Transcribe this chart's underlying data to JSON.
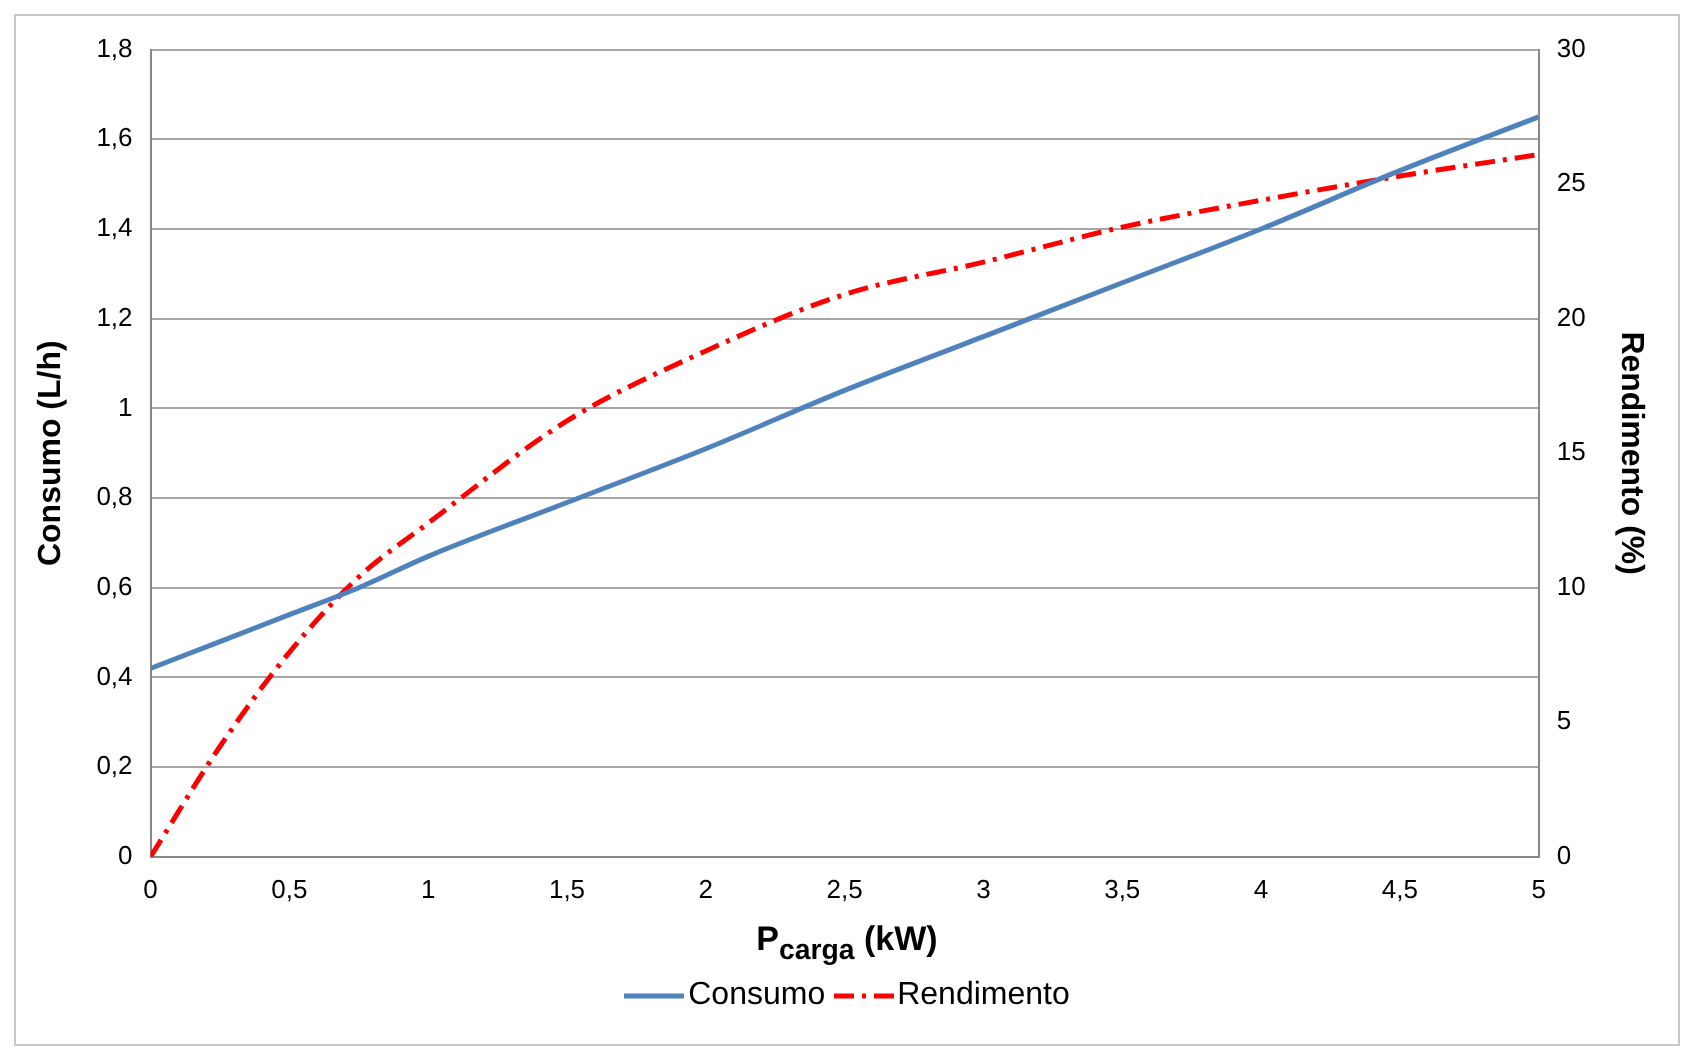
{
  "chart_data": {
    "type": "line",
    "xlabel": "P$_{carga}$ (kW)",
    "ylabel": "Consumo (L/h)",
    "y2label": "Rendimento (%)",
    "x": [
      0,
      0.25,
      0.5,
      0.75,
      1,
      1.5,
      2,
      2.5,
      3,
      3.5,
      4,
      4.5,
      5
    ],
    "series": [
      {
        "name": "Consumo",
        "color": "#4f81bd",
        "line_style": "solid",
        "values": [
          0.42,
          0.48,
          0.54,
          0.6,
          0.67,
          0.79,
          0.91,
          1.04,
          1.16,
          1.28,
          1.4,
          1.53,
          1.65
        ]
      },
      {
        "name": "Rendimento",
        "color": "#ff0000",
        "line_style": "dashed",
        "axis": "y2",
        "values": [
          0,
          4.1,
          7.6,
          10.4,
          12.4,
          16.2,
          18.8,
          20.9,
          22.1,
          23.4,
          24.4,
          25.3,
          26.1
        ]
      }
    ],
    "xlim": [
      0,
      5
    ],
    "xticks": [
      0,
      {
        "value": 0.5,
        "label": "0,5"
      },
      1,
      {
        "value": 1.5,
        "label": "1,5"
      },
      2,
      {
        "value": 2.5,
        "label": "2,5"
      },
      3,
      {
        "value": 3.5,
        "label": "3,5"
      },
      4,
      {
        "value": 4.5,
        "label": "4,5"
      },
      5
    ],
    "ylim": [
      0,
      1.8
    ],
    "yticks": [
      0,
      {
        "value": 0.2,
        "label": "0,2"
      },
      {
        "value": 0.4,
        "label": "0,4"
      },
      {
        "value": 0.6,
        "label": "0,6"
      },
      {
        "value": 0.8,
        "label": "0,8"
      },
      1,
      {
        "value": 1.2,
        "label": "1,2"
      },
      {
        "value": 1.4,
        "label": "1,4"
      },
      {
        "value": 1.6,
        "label": "1,6"
      },
      {
        "value": 1.8,
        "label": "1,8"
      }
    ],
    "y2lim": [
      0,
      30
    ],
    "y2ticks": [
      0,
      5,
      10,
      15,
      20,
      25,
      30
    ],
    "grid": "y",
    "legend": "bottom",
    "marker": "none"
  }
}
